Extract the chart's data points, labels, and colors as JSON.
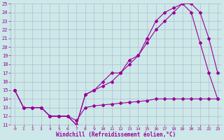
{
  "xlabel": "Windchill (Refroidissement éolien,°C)",
  "background_color": "#cce8e8",
  "grid_color": "#b0b0cc",
  "line_color": "#990099",
  "xlim": [
    -0.5,
    23.5
  ],
  "ylim": [
    11,
    25
  ],
  "xticks": [
    0,
    1,
    2,
    3,
    4,
    5,
    6,
    7,
    8,
    9,
    10,
    11,
    12,
    13,
    14,
    15,
    16,
    17,
    18,
    19,
    20,
    21,
    22,
    23
  ],
  "yticks": [
    11,
    12,
    13,
    14,
    15,
    16,
    17,
    18,
    19,
    20,
    21,
    22,
    23,
    24,
    25
  ],
  "line1_x": [
    0,
    1,
    2,
    3,
    4,
    5,
    6,
    7,
    8,
    9,
    10,
    11,
    12,
    13,
    14,
    15,
    16,
    17,
    18,
    19,
    20,
    21,
    22,
    23
  ],
  "line1_y": [
    15,
    13,
    13,
    13,
    12,
    12,
    12,
    11,
    14.5,
    15,
    16,
    17,
    17,
    18.5,
    19,
    21,
    23,
    24,
    24.5,
    25,
    25,
    24,
    21,
    17
  ],
  "line2_x": [
    0,
    1,
    2,
    3,
    4,
    5,
    6,
    7,
    8,
    9,
    10,
    11,
    12,
    13,
    14,
    15,
    16,
    17,
    18,
    19,
    20,
    21,
    22,
    23
  ],
  "line2_y": [
    15,
    13,
    13,
    13,
    12,
    12,
    12,
    11,
    14.5,
    15,
    15.5,
    16,
    17,
    18,
    19,
    20.5,
    22,
    23,
    24,
    25,
    24,
    20.5,
    17,
    14
  ],
  "line3_x": [
    0,
    1,
    2,
    3,
    4,
    5,
    6,
    7,
    8,
    9,
    10,
    11,
    12,
    13,
    14,
    15,
    16,
    17,
    18,
    19,
    20,
    21,
    22,
    23
  ],
  "line3_y": [
    15,
    13,
    13,
    13,
    12,
    12,
    12,
    11.5,
    13,
    13.2,
    13.3,
    13.4,
    13.5,
    13.6,
    13.7,
    13.8,
    14,
    14,
    14,
    14,
    14,
    14,
    14,
    14
  ]
}
